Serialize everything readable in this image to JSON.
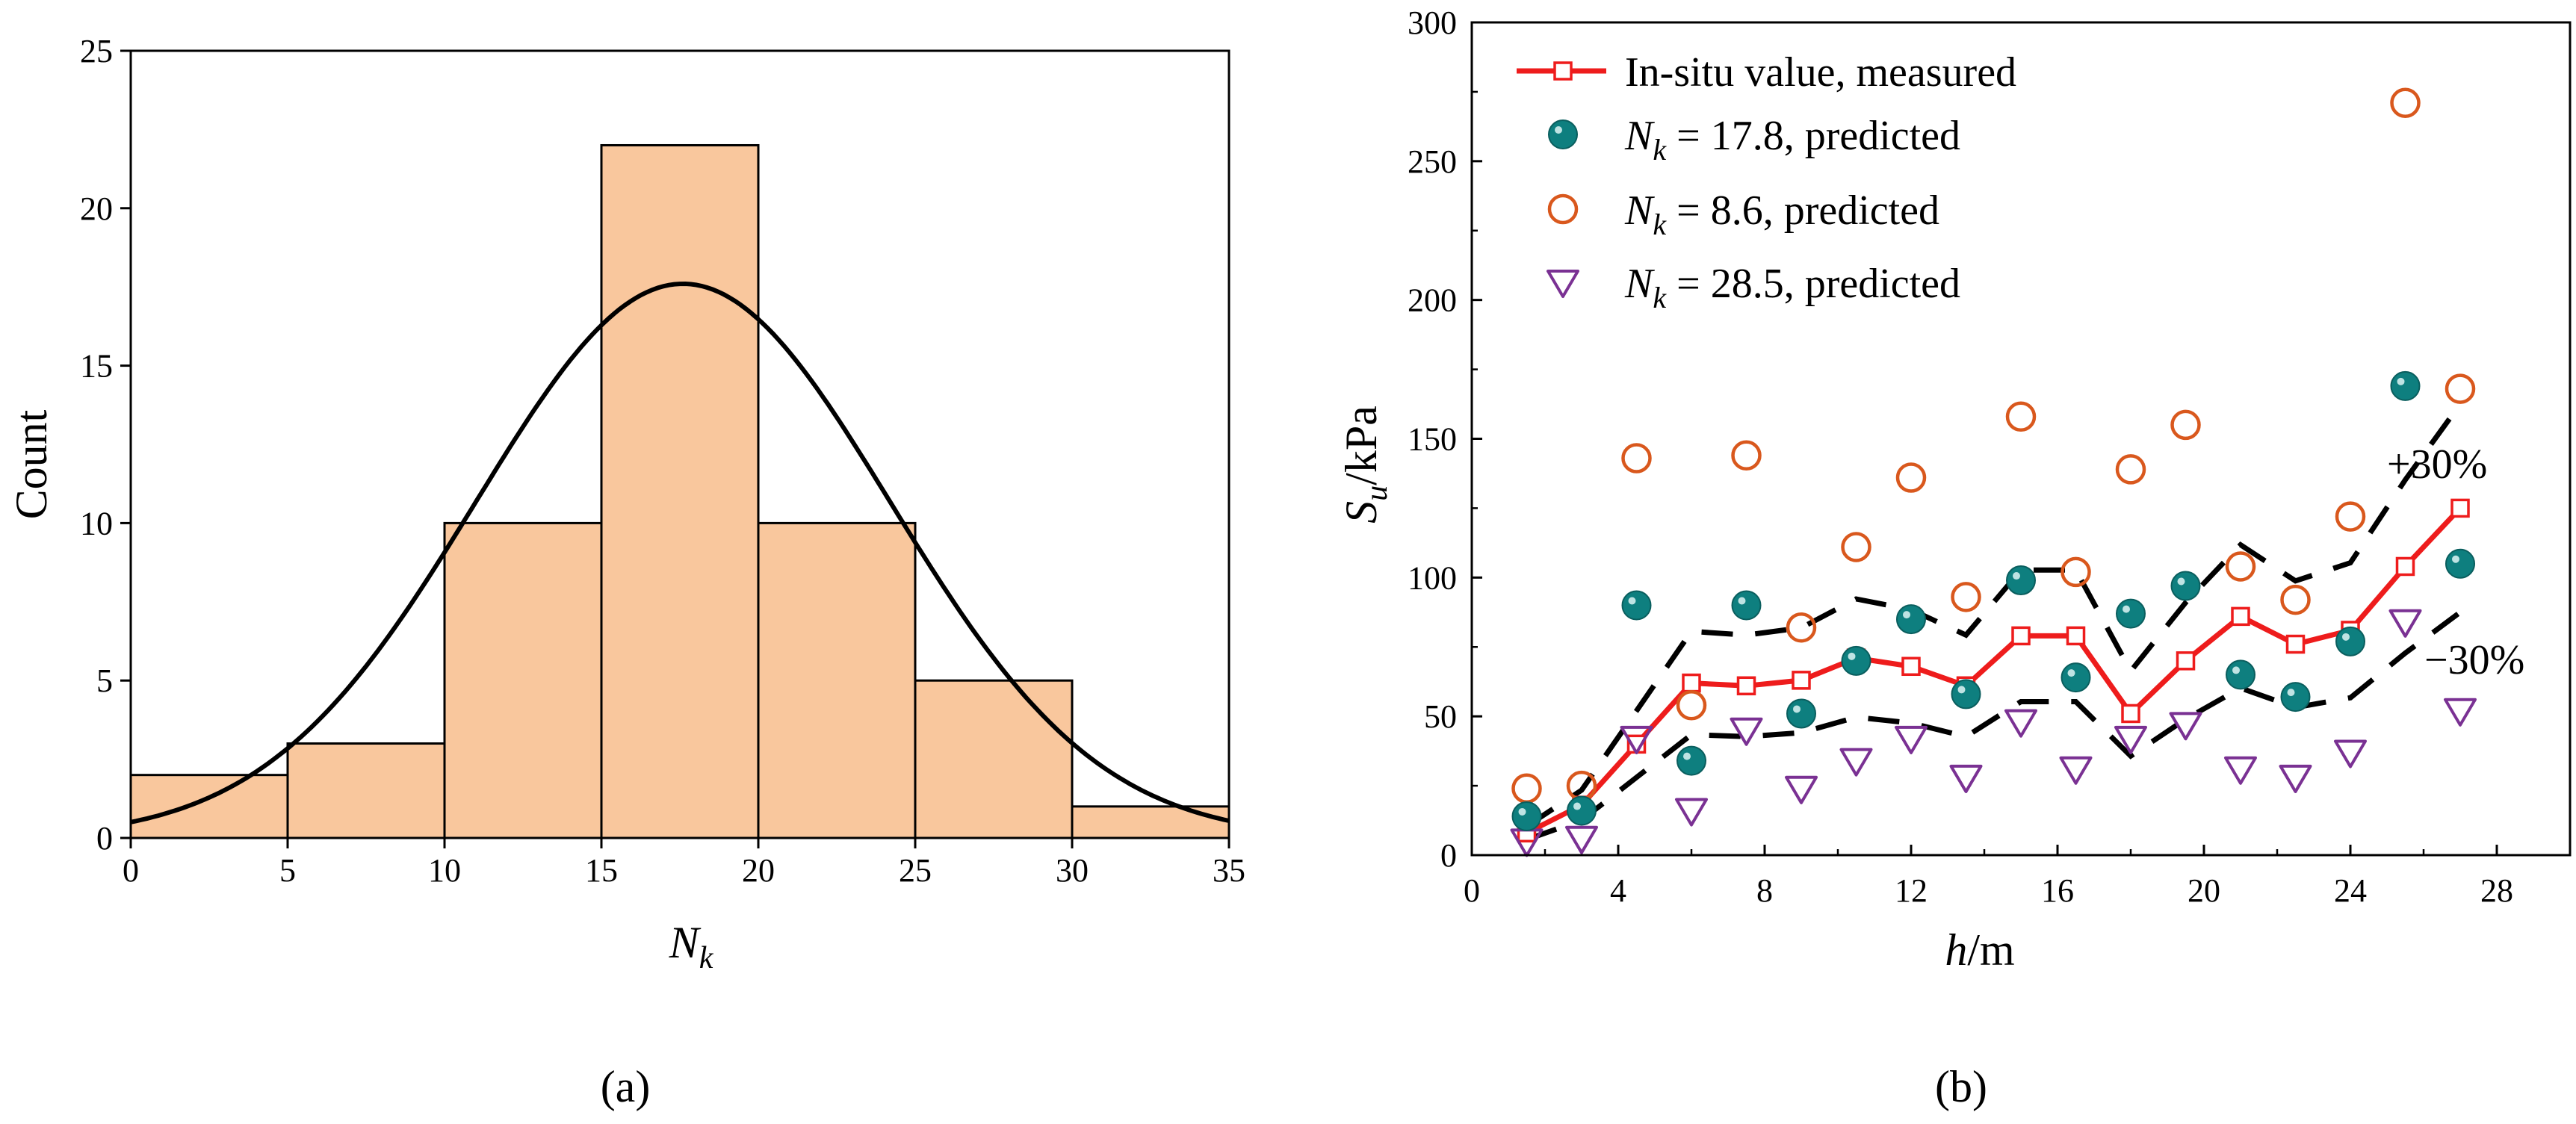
{
  "chart_data": [
    {
      "type": "bar",
      "panel_label": "(a)",
      "xlabel": "N",
      "xlabel_sub": "k",
      "ylabel": "Count",
      "xlim": [
        0,
        35
      ],
      "ylim": [
        0,
        25
      ],
      "xticks": [
        "0",
        "5",
        "10",
        "15",
        "20",
        "25",
        "30",
        "35"
      ],
      "yticks": [
        "0",
        "5",
        "10",
        "15",
        "20",
        "25"
      ],
      "bins": [
        [
          0,
          5
        ],
        [
          5,
          10
        ],
        [
          10,
          15
        ],
        [
          15,
          20
        ],
        [
          20,
          25
        ],
        [
          25,
          30
        ],
        [
          30,
          35
        ]
      ],
      "values": [
        2,
        3,
        10,
        22,
        10,
        5,
        1
      ],
      "bar_color": "#f9c79d",
      "fit_curve": {
        "type": "normal",
        "mean": 17.6,
        "sd": 6.6,
        "peak": 17.6,
        "color": "#000000"
      }
    },
    {
      "type": "scatter",
      "panel_label": "(b)",
      "xlabel": "h/m",
      "ylabel": "S",
      "ylabel_sub": "u",
      "ylabel_suffix": "/kPa",
      "xlim": [
        0,
        30
      ],
      "ylim": [
        0,
        300
      ],
      "xticks": [
        "0",
        "4",
        "8",
        "12",
        "16",
        "20",
        "24",
        "28"
      ],
      "yticks": [
        "0",
        "50",
        "100",
        "150",
        "200",
        "250",
        "300"
      ],
      "x": [
        1.5,
        3,
        4.5,
        6,
        7.5,
        9,
        10.5,
        12,
        13.5,
        15,
        16.5,
        18,
        19.5,
        21,
        22.5,
        24,
        25.5,
        27
      ],
      "series": [
        {
          "name": "In-situ value, measured",
          "label_html": "In-situ value, measured",
          "marker": "open-square-line",
          "color": "#ee1c1c",
          "values": [
            8,
            18,
            40,
            62,
            61,
            63,
            71,
            68,
            61,
            79,
            79,
            51,
            70,
            86,
            76,
            81,
            104,
            125
          ]
        },
        {
          "name": "N = 17.8, predicted",
          "sym": "N",
          "sub": "k",
          "rest": " = 17.8, predicted",
          "marker": "filled-circle",
          "color": "#0e7f7f",
          "values": [
            14,
            16,
            90,
            34,
            90,
            51,
            70,
            85,
            58,
            99,
            64,
            87,
            97,
            65,
            57,
            77,
            169,
            105
          ]
        },
        {
          "name": "N = 8.6, predicted",
          "sym": "N",
          "sub": "k",
          "rest": " = 8.6, predicted",
          "marker": "open-circle",
          "color": "#d9581d",
          "values": [
            24,
            25,
            143,
            54,
            144,
            82,
            111,
            136,
            93,
            158,
            102,
            139,
            155,
            104,
            92,
            122,
            271,
            168
          ]
        },
        {
          "name": "N = 28.5, predicted",
          "sym": "N",
          "sub": "k",
          "rest": " = 28.5, predicted",
          "marker": "open-triangle-down",
          "color": "#7a3193",
          "values": [
            5,
            6,
            42,
            16,
            45,
            24,
            34,
            42,
            28,
            48,
            31,
            42,
            47,
            31,
            28,
            37,
            84,
            52
          ]
        }
      ],
      "bounds": [
        {
          "label": "+30%",
          "factor": 1.3
        },
        {
          "label": "−30%",
          "factor": 0.7
        }
      ],
      "legend_position": "top-left"
    }
  ]
}
